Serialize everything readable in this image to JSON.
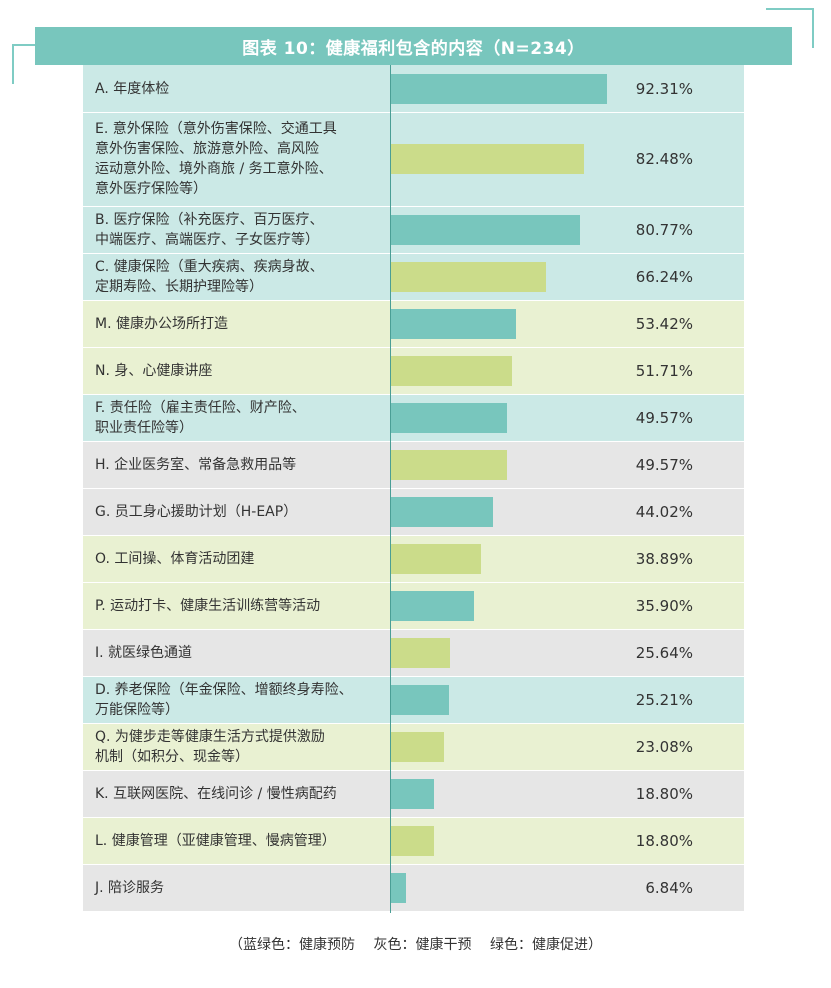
{
  "header": {
    "title": "图表 10：健康福利包含的内容（N=234）"
  },
  "colors": {
    "teal_bar": "#78c6bd",
    "green_bar": "#cbdc8a",
    "teal_bg": "#cbe9e6",
    "green_bg": "#e9f1d2",
    "grey_bg": "#e6e6e6",
    "header_bg": "#78c6bd"
  },
  "chart_data": {
    "type": "bar",
    "orientation": "horizontal",
    "title": "图表 10：健康福利包含的内容（N=234）",
    "xlim": [
      0,
      100
    ],
    "categories": [
      "A. 年度体检",
      "E. 意外保险（意外伤害保险、交通工具意外伤害保险、旅游意外险、高风险运动意外险、境外商旅 / 务工意外险、意外医疗保险等）",
      "B. 医疗保险（补充医疗、百万医疗、中端医疗、高端医疗、子女医疗等）",
      "C. 健康保险（重大疾病、疾病身故、定期寿险、长期护理险等）",
      "M. 健康办公场所打造",
      "N. 身、心健康讲座",
      "F. 责任险（雇主责任险、财产险、职业责任险等）",
      "H. 企业医务室、常备急救用品等",
      "G. 员工身心援助计划（H-EAP）",
      "O. 工间操、体育活动团建",
      "P. 运动打卡、健康生活训练营等活动",
      "I. 就医绿色通道",
      "D. 养老保险（年金保险、增额终身寿险、万能保险等）",
      "Q. 为健步走等健康生活方式提供激励机制（如积分、现金等）",
      "K. 互联网医院、在线问诊 / 慢性病配药",
      "L. 健康管理（亚健康管理、慢病管理）",
      "J. 陪诊服务"
    ],
    "label_lines": [
      [
        "A. 年度体检"
      ],
      [
        "E. 意外保险（意外伤害保险、交通工具",
        "意外伤害保险、旅游意外险、高风险",
        "运动意外险、境外商旅 / 务工意外险、",
        "意外医疗保险等）"
      ],
      [
        "B. 医疗保险（补充医疗、百万医疗、",
        "中端医疗、高端医疗、子女医疗等）"
      ],
      [
        "C. 健康保险（重大疾病、疾病身故、",
        "定期寿险、长期护理险等）"
      ],
      [
        "M. 健康办公场所打造"
      ],
      [
        "N. 身、心健康讲座"
      ],
      [
        "F. 责任险（雇主责任险、财产险、",
        "职业责任险等）"
      ],
      [
        "H. 企业医务室、常备急救用品等"
      ],
      [
        "G. 员工身心援助计划（H-EAP）"
      ],
      [
        "O. 工间操、体育活动团建"
      ],
      [
        "P. 运动打卡、健康生活训练营等活动"
      ],
      [
        "I. 就医绿色通道"
      ],
      [
        "D. 养老保险（年金保险、增额终身寿险、",
        "万能保险等）"
      ],
      [
        "Q. 为健步走等健康生活方式提供激励",
        "机制（如积分、现金等）"
      ],
      [
        "K. 互联网医院、在线问诊 / 慢性病配药"
      ],
      [
        "L. 健康管理（亚健康管理、慢病管理）"
      ],
      [
        "J. 陪诊服务"
      ]
    ],
    "values": [
      92.31,
      82.48,
      80.77,
      66.24,
      53.42,
      51.71,
      49.57,
      49.57,
      44.02,
      38.89,
      35.9,
      25.64,
      25.21,
      23.08,
      18.8,
      18.8,
      6.84
    ],
    "value_labels": [
      "92.31%",
      "82.48%",
      "80.77%",
      "66.24%",
      "53.42%",
      "51.71%",
      "49.57%",
      "49.57%",
      "44.02%",
      "38.89%",
      "35.90%",
      "25.64%",
      "25.21%",
      "23.08%",
      "18.80%",
      "18.80%",
      "6.84%"
    ],
    "bar_colors": [
      "teal",
      "green",
      "teal",
      "green",
      "teal",
      "green",
      "teal",
      "green",
      "teal",
      "green",
      "teal",
      "green",
      "teal",
      "green",
      "teal",
      "green",
      "teal"
    ],
    "row_backgrounds": [
      "teal",
      "teal",
      "teal",
      "teal",
      "green",
      "green",
      "teal",
      "grey",
      "grey",
      "green",
      "green",
      "grey",
      "teal",
      "green",
      "grey",
      "green",
      "grey"
    ]
  },
  "footer": {
    "legend_text": "（蓝绿色：健康预防　 灰色：健康干预　 绿色：健康促进）"
  }
}
